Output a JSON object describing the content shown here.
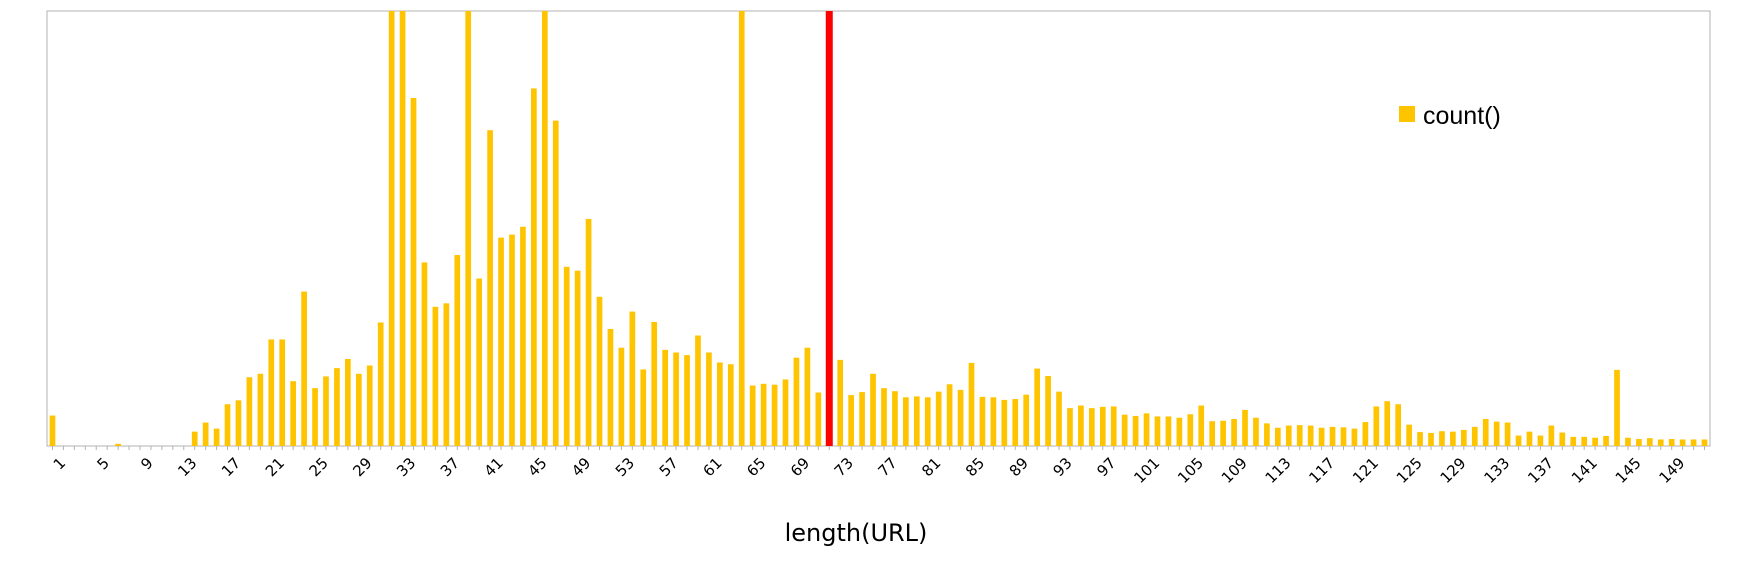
{
  "chart_data": {
    "type": "bar",
    "title": "",
    "xlabel": "length(URL)",
    "ylabel": "",
    "legend": {
      "label": "count()",
      "position": "top-right"
    },
    "grid": false,
    "x": [
      1,
      2,
      3,
      4,
      5,
      6,
      7,
      8,
      9,
      10,
      11,
      12,
      13,
      14,
      15,
      16,
      17,
      18,
      19,
      20,
      21,
      22,
      23,
      24,
      25,
      26,
      27,
      28,
      29,
      30,
      31,
      32,
      33,
      34,
      35,
      36,
      37,
      38,
      39,
      40,
      41,
      42,
      43,
      44,
      45,
      46,
      47,
      48,
      49,
      50,
      51,
      52,
      53,
      54,
      55,
      56,
      57,
      58,
      59,
      60,
      61,
      62,
      63,
      64,
      65,
      66,
      67,
      68,
      69,
      70,
      71,
      72,
      73,
      74,
      75,
      76,
      77,
      78,
      79,
      80,
      81,
      82,
      83,
      84,
      85,
      86,
      87,
      88,
      89,
      90,
      91,
      92,
      93,
      94,
      95,
      96,
      97,
      98,
      99,
      100,
      101,
      102,
      103,
      104,
      105,
      106,
      107,
      108,
      109,
      110,
      111,
      112,
      113,
      114,
      115,
      116,
      117,
      118,
      119,
      120,
      121,
      122,
      123,
      124,
      125,
      126,
      127,
      128,
      129,
      130,
      131,
      132,
      133,
      134,
      135,
      136,
      137,
      138,
      139,
      140,
      141,
      142,
      143,
      144,
      145,
      146,
      147,
      148,
      149,
      150,
      151,
      152
    ],
    "tick_labels": [
      "1",
      "5",
      "9",
      "13",
      "17",
      "21",
      "25",
      "29",
      "33",
      "37",
      "41",
      "45",
      "49",
      "53",
      "57",
      "61",
      "65",
      "69",
      "73",
      "77",
      "81",
      "85",
      "89",
      "93",
      "97",
      "101",
      "105",
      "109",
      "113",
      "117",
      "121",
      "125",
      "129",
      "133",
      "137",
      "141",
      "145",
      "149"
    ],
    "values": [
      7.0,
      0,
      0,
      0,
      0,
      0,
      0.5,
      0,
      0,
      0,
      0,
      0,
      0,
      3.3,
      5.4,
      4.0,
      9.6,
      10.5,
      15.8,
      16.6,
      24.5,
      24.5,
      14.9,
      35.5,
      13.3,
      16.0,
      17.9,
      20.0,
      16.6,
      18.5,
      28.4,
      100,
      100,
      80.0,
      42.2,
      32.0,
      32.8,
      43.9,
      100,
      38.5,
      72.6,
      47.9,
      48.6,
      50.4,
      82.2,
      100,
      74.8,
      41.2,
      40.3,
      52.2,
      34.3,
      26.9,
      22.6,
      30.9,
      17.6,
      28.5,
      22.1,
      21.5,
      20.9,
      25.4,
      21.5,
      19.2,
      18.8,
      100,
      13.9,
      14.3,
      14.1,
      15.3,
      20.3,
      22.6,
      12.3,
      100,
      19.8,
      11.7,
      12.4,
      16.6,
      13.3,
      12.6,
      11.2,
      11.4,
      11.2,
      12.5,
      14.2,
      12.9,
      19.1,
      11.3,
      11.2,
      10.6,
      10.8,
      11.8,
      17.8,
      16.1,
      12.5,
      8.7,
      9.3,
      8.7,
      9.0,
      9.1,
      7.2,
      6.9,
      7.5,
      6.8,
      6.8,
      6.5,
      7.3,
      9.3,
      5.7,
      5.8,
      6.2,
      8.3,
      6.5,
      5.2,
      4.2,
      4.7,
      4.8,
      4.7,
      4.2,
      4.4,
      4.3,
      4.0,
      5.5,
      9.1,
      10.3,
      9.6,
      4.9,
      3.2,
      3.0,
      3.4,
      3.3,
      3.7,
      4.4,
      6.2,
      5.6,
      5.4,
      2.4,
      3.3,
      2.4,
      4.7,
      3.1,
      2.1,
      2.1,
      1.9,
      2.3,
      17.5,
      1.9,
      1.6,
      1.8,
      1.5,
      1.6,
      1.5,
      1.5,
      1.5
    ],
    "ylim": [
      0,
      100
    ],
    "colors": {
      "bar": "#ffc400",
      "marker": "#ff0000",
      "frame": "#b3b3b3"
    },
    "marker_line": {
      "x": 72,
      "color": "#ff0000"
    }
  }
}
